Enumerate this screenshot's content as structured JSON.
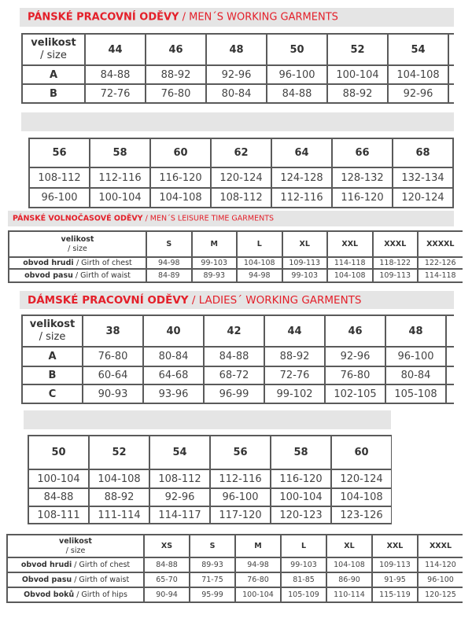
{
  "sections": [
    {
      "title_bold": "PÁNSKÉ PRACOVNÍ ODĚVY",
      "title_normal": " / MEN´S WORKING GARMENTS"
    },
    {
      "title_bold": "PÁNSKÉ VOLNOČASOVÉ ODĚVY",
      "title_normal": " / MEN´S LEISURE TIME GARMENTS"
    },
    {
      "title_bold": "DÁMSKÉ PRACOVNÍ ODĚVY",
      "title_normal": " / LADIES´ WORKING GARMENTS"
    }
  ],
  "tables": [
    {
      "corner_bold": "velikost",
      "corner_normal": "/ size",
      "headers": [
        "44",
        "46",
        "48",
        "50",
        "52",
        "54"
      ],
      "rows": [
        {
          "label_bold": "A",
          "cells": [
            "84-88",
            "88-92",
            "92-96",
            "96-100",
            "100-104",
            "104-108"
          ]
        },
        {
          "label_bold": "B",
          "cells": [
            "72-76",
            "76-80",
            "80-84",
            "84-88",
            "88-92",
            "92-96"
          ]
        }
      ]
    },
    {
      "headers": [
        "56",
        "58",
        "60",
        "62",
        "64",
        "66",
        "68"
      ],
      "rows": [
        {
          "cells": [
            "108-112",
            "112-116",
            "116-120",
            "120-124",
            "124-128",
            "128-132",
            "132-134"
          ]
        },
        {
          "cells": [
            "96-100",
            "100-104",
            "104-108",
            "108-112",
            "112-116",
            "116-120",
            "120-124"
          ]
        }
      ]
    },
    {
      "corner_bold": "velikost",
      "corner_normal": "/ size",
      "headers": [
        "S",
        "M",
        "L",
        "XL",
        "XXL",
        "XXXL",
        "XXXXL"
      ],
      "rows": [
        {
          "label_bold": "obvod hrudi ",
          "label_normal": " / Girth of chest",
          "cells": [
            "94-98",
            "99-103",
            "104-108",
            "109-113",
            "114-118",
            "118-122",
            "122-126"
          ]
        },
        {
          "label_bold": "obvod pasu",
          "label_normal": " / Girth of waist",
          "cells": [
            "84-89",
            "89-93",
            "94-98",
            "99-103",
            "104-108",
            "109-113",
            "114-118"
          ]
        }
      ]
    },
    {
      "corner_bold": "velikost",
      "corner_normal": "/ size",
      "headers": [
        "38",
        "40",
        "42",
        "44",
        "46",
        "48"
      ],
      "rows": [
        {
          "label_bold": "A",
          "cells": [
            "76-80",
            "80-84",
            "84-88",
            "88-92",
            "92-96",
            "96-100"
          ]
        },
        {
          "label_bold": "B",
          "cells": [
            "60-64",
            "64-68",
            "68-72",
            "72-76",
            "76-80",
            "80-84"
          ]
        },
        {
          "label_bold": "C",
          "cells": [
            "90-93",
            "93-96",
            "96-99",
            "99-102",
            "102-105",
            "105-108"
          ]
        }
      ]
    },
    {
      "headers": [
        "50",
        "52",
        "54",
        "56",
        "58",
        "60"
      ],
      "rows": [
        {
          "cells": [
            "100-104",
            "104-108",
            "108-112",
            "112-116",
            "116-120",
            "120-124"
          ]
        },
        {
          "cells": [
            "84-88",
            "88-92",
            "92-96",
            "96-100",
            "100-104",
            "104-108"
          ]
        },
        {
          "cells": [
            "108-111",
            "111-114",
            "114-117",
            "117-120",
            "120-123",
            "123-126"
          ]
        }
      ]
    },
    {
      "corner_bold": "velikost",
      "corner_normal": "/ size",
      "headers": [
        "XS",
        "S",
        "M",
        "L",
        "XL",
        "XXL",
        "XXXL"
      ],
      "rows": [
        {
          "label_bold": "obvod hrudi",
          "label_normal": " / Girth of chest",
          "cells": [
            "84-88",
            "89-93",
            "94-98",
            "99-103",
            "104-108",
            "109-113",
            "114-120"
          ]
        },
        {
          "label_bold": "Obvod pasu",
          "label_normal": " / Girth of waist",
          "cells": [
            "65-70",
            "71-75",
            "76-80",
            "81-85",
            "86-90",
            "91-95",
            "96-100"
          ]
        },
        {
          "label_bold": "Obvod boků",
          "label_normal": " / Girth of hips",
          "cells": [
            "90-94",
            "95-99",
            "100-104",
            "105-109",
            "110-114",
            "115-119",
            "120-125"
          ]
        }
      ]
    }
  ]
}
